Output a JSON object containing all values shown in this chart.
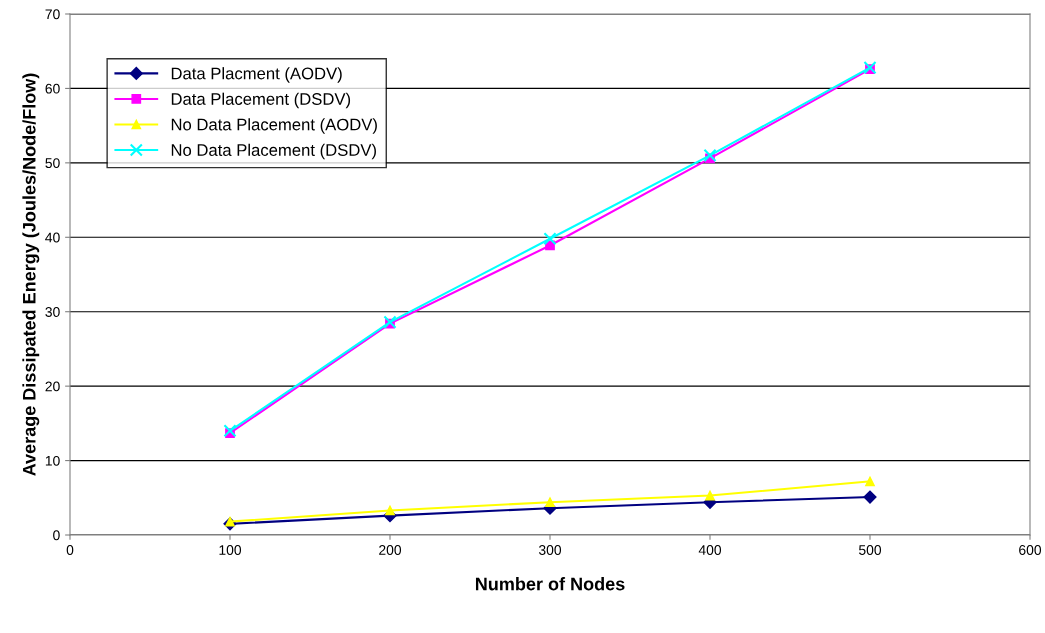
{
  "chart_data": {
    "type": "line",
    "xlabel": "Number of Nodes",
    "ylabel": "Average Dissipated Energy (Joules/Node/Flow)",
    "x": [
      100,
      200,
      300,
      400,
      500
    ],
    "series": [
      {
        "name": "Data Placment (AODV)",
        "color": "#000080",
        "marker": "diamond",
        "values": [
          1.5,
          2.6,
          3.6,
          4.4,
          5.1
        ]
      },
      {
        "name": "Data Placement (DSDV)",
        "color": "#ff00ff",
        "marker": "square",
        "values": [
          13.7,
          28.4,
          38.9,
          50.6,
          62.6
        ]
      },
      {
        "name": "No Data Placement (AODV)",
        "color": "#ffff00",
        "marker": "triangle",
        "values": [
          1.8,
          3.3,
          4.4,
          5.3,
          7.2
        ]
      },
      {
        "name": "No Data Placement (DSDV)",
        "color": "#00ffff",
        "marker": "cross",
        "values": [
          14.0,
          28.6,
          39.8,
          51.0,
          62.8
        ]
      }
    ],
    "xlim": [
      0,
      600
    ],
    "xticks": [
      0,
      100,
      200,
      300,
      400,
      500,
      600
    ],
    "ylim": [
      0,
      70
    ],
    "yticks": [
      0,
      10,
      20,
      30,
      40,
      50,
      60,
      70
    ],
    "grid": "y",
    "legend": "top left"
  }
}
